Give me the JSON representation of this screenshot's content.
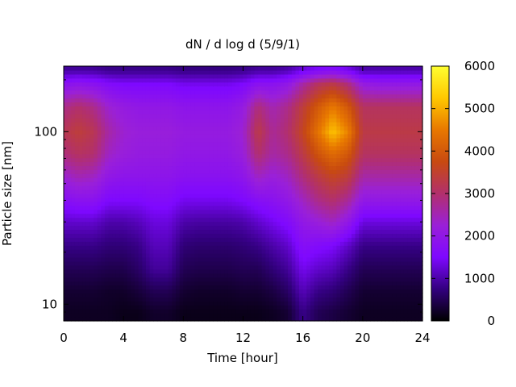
{
  "chart_data": {
    "type": "heatmap",
    "title": "dN / d log d (5/9/1)",
    "xlabel": "Time [hour]",
    "ylabel": "Particle size [nm]",
    "xlim": [
      0,
      24
    ],
    "ylim": [
      8,
      240
    ],
    "y_scale": "log",
    "x_ticks": [
      0,
      4,
      8,
      12,
      16,
      20,
      24
    ],
    "x_tick_labels": [
      "0",
      "4",
      "8",
      "12",
      "16",
      "20",
      "24"
    ],
    "y_ticks": [
      10,
      100
    ],
    "y_tick_labels": [
      "10",
      "100"
    ],
    "colorbar": {
      "range": [
        0,
        6000
      ],
      "ticks": [
        0,
        1000,
        2000,
        3000,
        4000,
        5000,
        6000
      ],
      "tick_labels": [
        "0",
        "1000",
        "2000",
        "3000",
        "4000",
        "5000",
        "6000"
      ],
      "palette": [
        "#000000",
        "#33007f",
        "#7e08ff",
        "#9a20d8",
        "#b2306c",
        "#c84a10",
        "#e87800",
        "#ffc800",
        "#ffff30"
      ]
    },
    "grid": false,
    "legend": "colorbar-right",
    "diameters_nm": [
      9,
      12,
      16,
      22,
      30,
      40,
      55,
      75,
      100,
      140,
      190,
      230
    ],
    "times_hour": [
      0,
      1,
      2,
      3,
      4,
      5,
      6,
      7,
      8,
      9,
      10,
      11,
      12,
      13,
      14,
      15,
      16,
      17,
      18,
      19,
      20,
      21,
      22,
      23,
      24
    ],
    "values": [
      [
        200,
        200,
        200,
        200,
        150,
        150,
        250,
        250,
        150,
        150,
        150,
        150,
        150,
        150,
        200,
        300,
        800,
        500,
        400,
        300,
        200,
        200,
        200,
        200,
        200
      ],
      [
        300,
        300,
        300,
        250,
        250,
        350,
        500,
        500,
        300,
        250,
        250,
        250,
        300,
        300,
        400,
        600,
        1100,
        800,
        700,
        500,
        300,
        300,
        300,
        300,
        300
      ],
      [
        500,
        500,
        500,
        450,
        450,
        600,
        900,
        900,
        500,
        450,
        450,
        450,
        500,
        500,
        700,
        900,
        1400,
        1200,
        1100,
        800,
        500,
        500,
        500,
        500,
        500
      ],
      [
        800,
        800,
        800,
        700,
        700,
        800,
        1100,
        1100,
        700,
        650,
        650,
        650,
        700,
        800,
        1000,
        1200,
        1700,
        1600,
        1500,
        1200,
        800,
        800,
        800,
        800,
        800
      ],
      [
        1200,
        1200,
        1200,
        1000,
        1000,
        1100,
        1300,
        1300,
        1000,
        950,
        950,
        950,
        1000,
        1200,
        1400,
        1600,
        2000,
        2200,
        2400,
        2000,
        1300,
        1300,
        1300,
        1300,
        1300
      ],
      [
        1700,
        1800,
        1800,
        1500,
        1500,
        1500,
        1600,
        1600,
        1400,
        1400,
        1400,
        1400,
        1500,
        1700,
        1800,
        2000,
        2400,
        2800,
        3000,
        2700,
        2000,
        2000,
        2000,
        2000,
        2000
      ],
      [
        2300,
        2500,
        2400,
        2000,
        1900,
        1900,
        1900,
        1900,
        1800,
        1800,
        1800,
        1800,
        1900,
        2400,
        2200,
        2400,
        2900,
        3300,
        3600,
        3400,
        2600,
        2600,
        2600,
        2600,
        2600
      ],
      [
        2900,
        3100,
        3000,
        2400,
        2200,
        2100,
        2100,
        2100,
        2000,
        2000,
        2000,
        2000,
        2200,
        3000,
        2600,
        2800,
        3300,
        3900,
        4300,
        4000,
        3100,
        3100,
        3100,
        3100,
        3100
      ],
      [
        3200,
        3400,
        3200,
        2600,
        2300,
        2200,
        2200,
        2200,
        2100,
        2100,
        2100,
        2100,
        2300,
        3300,
        2700,
        3000,
        3600,
        4400,
        5200,
        4600,
        3300,
        3300,
        3300,
        3300,
        3300
      ],
      [
        2800,
        3000,
        2800,
        2300,
        2100,
        2000,
        2000,
        2000,
        1900,
        1900,
        1900,
        1900,
        2100,
        2900,
        2500,
        2800,
        3400,
        4000,
        4500,
        4000,
        3100,
        3100,
        3100,
        3100,
        3100
      ],
      [
        1800,
        1900,
        1800,
        1600,
        1500,
        1500,
        1500,
        1500,
        1400,
        1400,
        1400,
        1400,
        1500,
        1800,
        1800,
        2000,
        2600,
        3100,
        3300,
        2900,
        2100,
        2000,
        2000,
        2000,
        2000
      ],
      [
        900,
        900,
        900,
        800,
        800,
        800,
        800,
        800,
        750,
        750,
        750,
        750,
        800,
        900,
        900,
        1000,
        1300,
        1500,
        1600,
        1400,
        1000,
        1000,
        1000,
        1000,
        1000
      ]
    ]
  }
}
